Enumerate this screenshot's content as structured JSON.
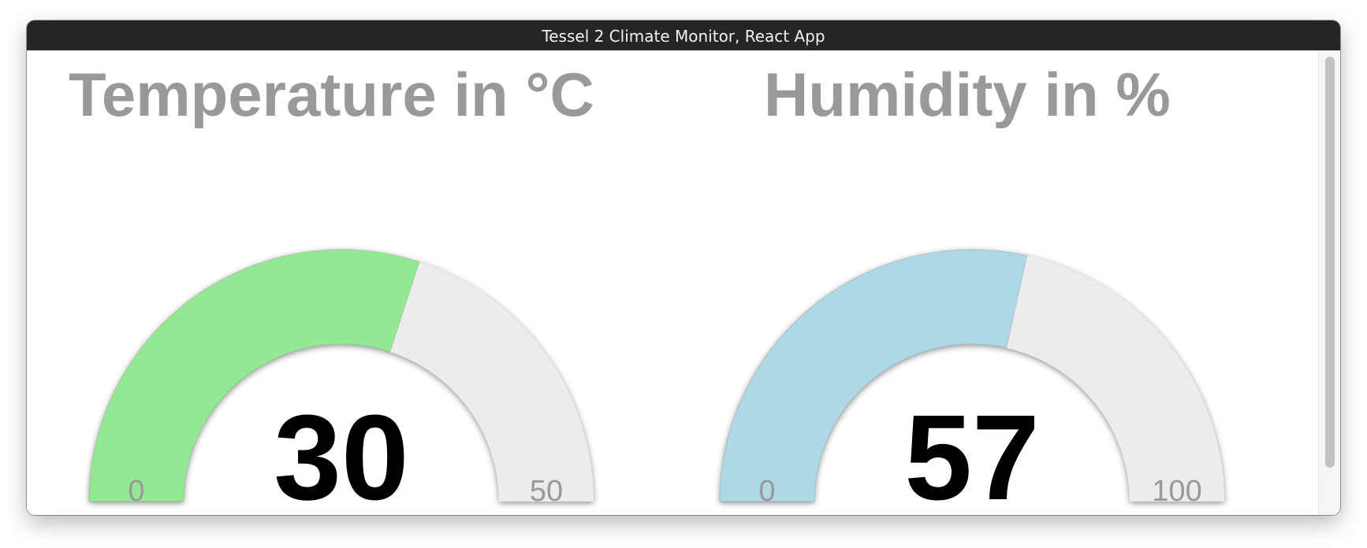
{
  "window": {
    "title": "Tessel 2 Climate Monitor, React App"
  },
  "gauges": {
    "temperature": {
      "title": "Temperature in °C",
      "value": 30,
      "value_label": "30",
      "min": 0,
      "max": 50,
      "min_label": "0",
      "max_label": "50",
      "fill_color": "#93e993",
      "track_color": "#edebeb"
    },
    "humidity": {
      "title": "Humidity in %",
      "value": 57,
      "value_label": "57",
      "min": 0,
      "max": 100,
      "min_label": "0",
      "max_label": "100",
      "fill_color": "#add8e6",
      "track_color": "#edebeb"
    }
  }
}
